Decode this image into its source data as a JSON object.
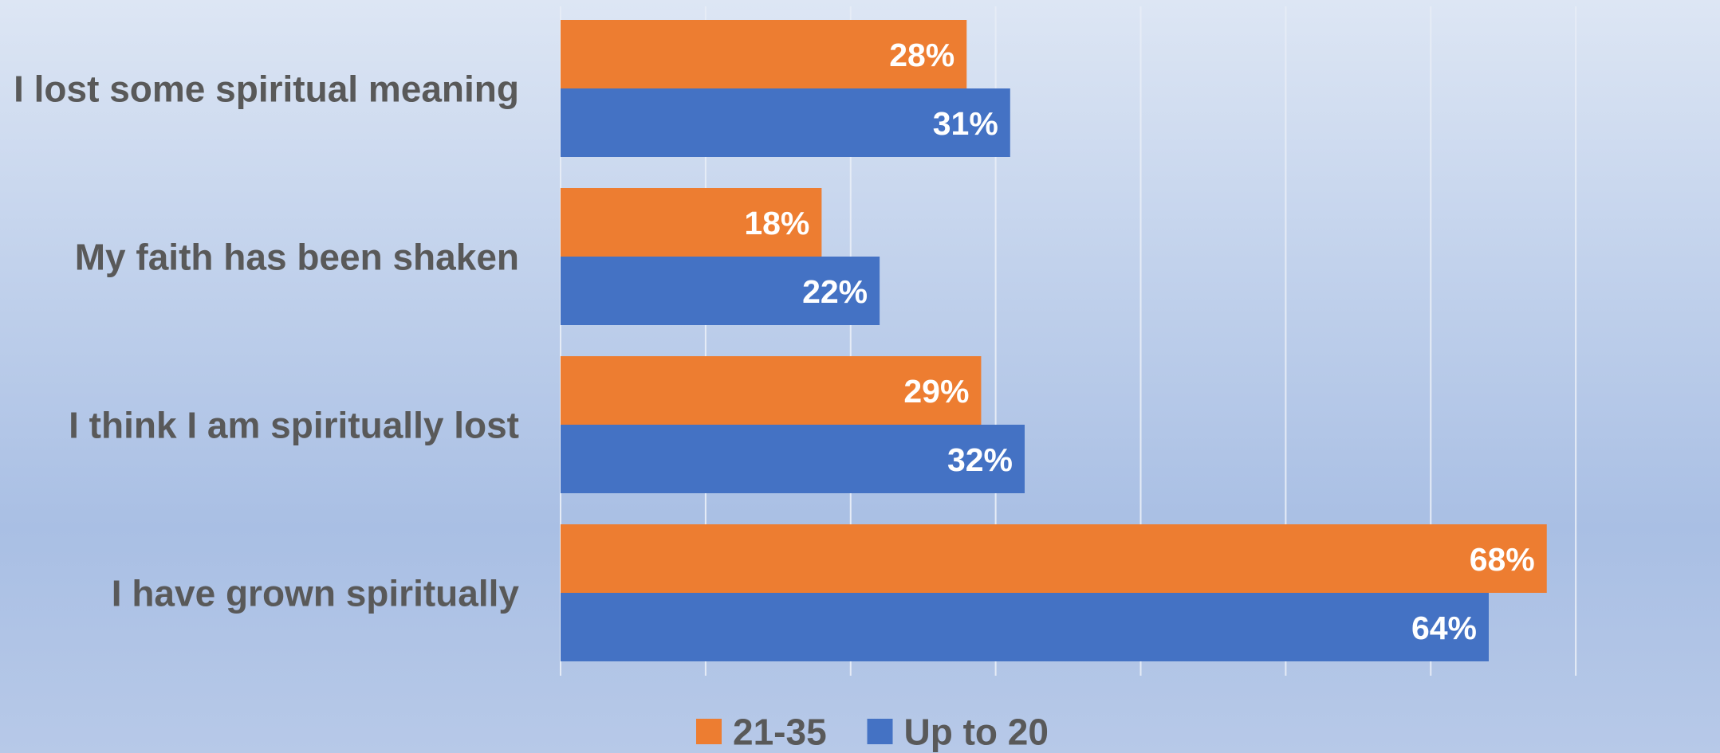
{
  "chart_data": {
    "type": "bar",
    "orientation": "horizontal",
    "categories": [
      "I lost some spiritual meaning",
      "My faith has been shaken",
      "I think I am spiritually lost",
      "I have grown spiritually"
    ],
    "series": [
      {
        "name": "21-35",
        "color": "#ed7d31",
        "values": [
          28,
          18,
          29,
          68
        ],
        "labels": [
          "28%",
          "18%",
          "29%",
          "68%"
        ]
      },
      {
        "name": "Up to 20",
        "color": "#4472c4",
        "values": [
          31,
          22,
          32,
          64
        ],
        "labels": [
          "31%",
          "22%",
          "32%",
          "64%"
        ]
      }
    ],
    "xlim": [
      0,
      80
    ],
    "x_gridlines": [
      0,
      10,
      20,
      30,
      40,
      50,
      60,
      70,
      80
    ],
    "grid": true,
    "legend_position": "bottom",
    "legend_order": [
      "21-35",
      "Up to 20"
    ],
    "title": "",
    "xlabel": "",
    "ylabel": ""
  }
}
